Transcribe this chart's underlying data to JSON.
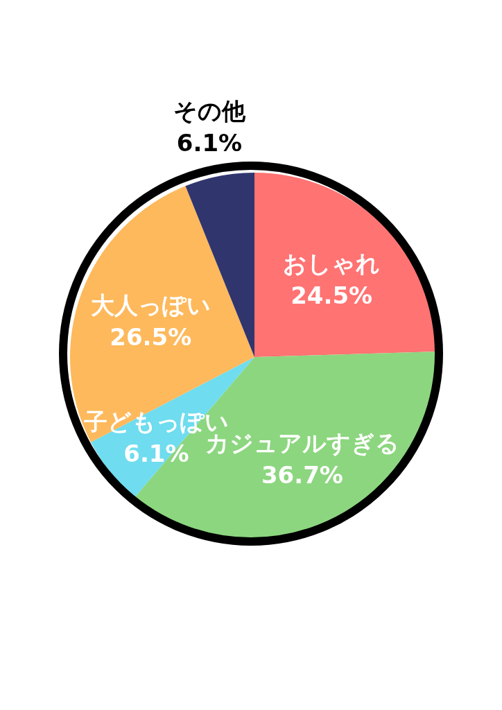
{
  "chart_data": {
    "type": "pie",
    "categories": [
      "おしゃれ",
      "カジュアルすぎる",
      "子どもっぽい",
      "大人っぽい",
      "その他"
    ],
    "values": [
      24.5,
      36.7,
      6.1,
      26.5,
      6.1
    ],
    "colors": [
      "#ff7373",
      "#8cd67f",
      "#6fdcef",
      "#fdb95c",
      "#31356e"
    ],
    "value_labels": [
      "24.5%",
      "36.7%",
      "6.1%",
      "26.5%",
      "6.1%"
    ]
  }
}
